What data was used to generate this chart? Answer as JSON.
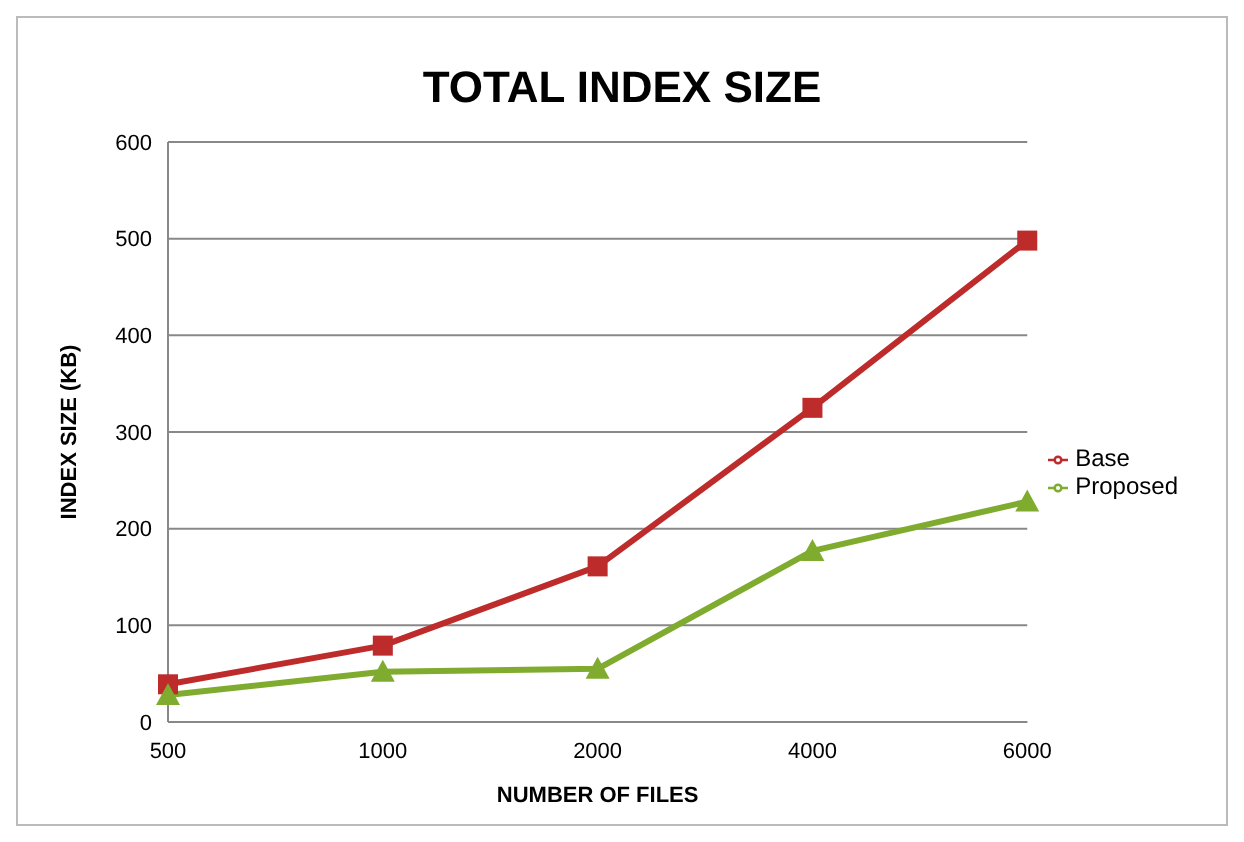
{
  "chart_data": {
    "type": "line",
    "title": "TOTAL INDEX SIZE",
    "xlabel": "NUMBER OF FILES",
    "ylabel": "INDEX SIZE (KB)",
    "categories": [
      "500",
      "1000",
      "2000",
      "4000",
      "6000"
    ],
    "series": [
      {
        "name": "Base",
        "color": "#be2b2b",
        "marker": "square",
        "values": [
          39,
          79,
          161,
          325,
          498
        ]
      },
      {
        "name": "Proposed",
        "color": "#7fab2f",
        "marker": "triangle",
        "values": [
          28,
          52,
          55,
          177,
          228
        ]
      }
    ],
    "ylim": [
      0,
      600
    ],
    "yticks": [
      0,
      100,
      200,
      300,
      400,
      500,
      600
    ],
    "grid": "y",
    "legend": "right",
    "line_style": "solid"
  }
}
